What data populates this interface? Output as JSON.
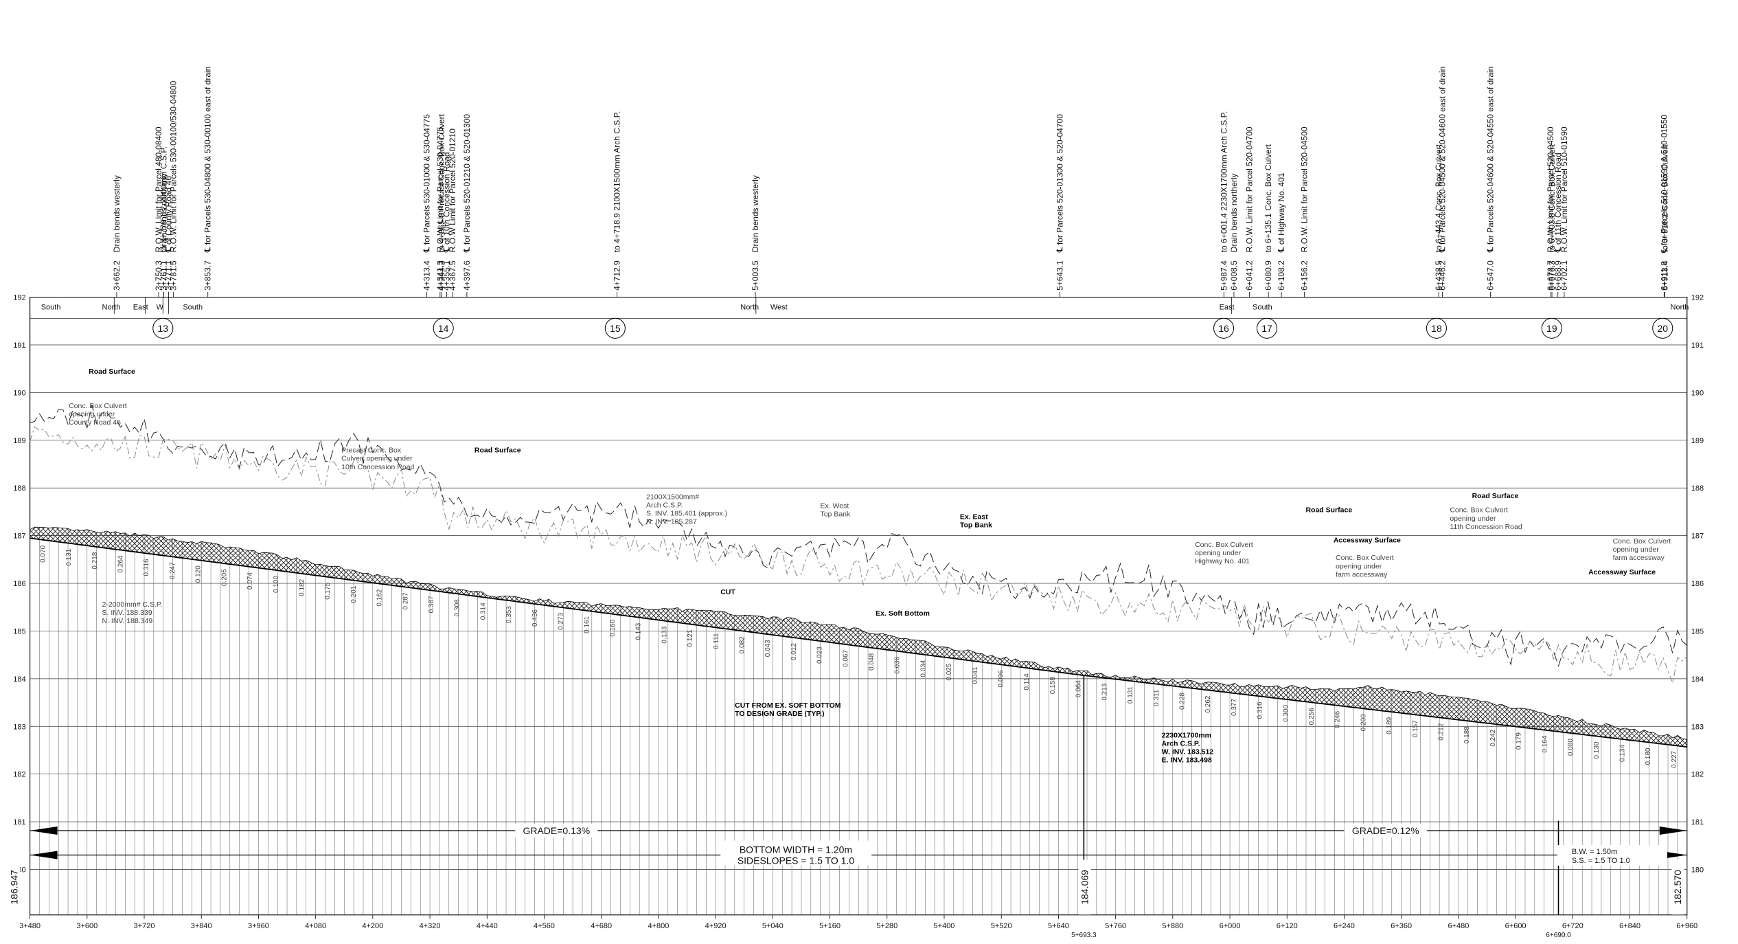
{
  "annotations": [
    {
      "station": "3+662.2",
      "text": "Drain bends westerly"
    },
    {
      "station": "3+750.3",
      "text": "R.O.W. Limit for Parcel 480-08400"
    },
    {
      "station": "3+761.1",
      "text": "Drain bends northerly"
    },
    {
      "station": "3+761.1",
      "text": "to 3+779.1 2-2000mm C.S.P."
    },
    {
      "station": "3+771.1",
      "text": "℄ of County Road 46"
    },
    {
      "station": "3+781.5",
      "text": "R.O.W. Limit for Parcels 530-00100/530-04800"
    },
    {
      "station": "3+853.7",
      "text": "℄ for Parcels 530-04800 & 530-00100 east of drain"
    },
    {
      "station": "4+313.4",
      "text": "℄ for Parcels 530-01000 & 530-04775"
    },
    {
      "station": "4+341.3",
      "text": "R.O.W. Limit for Parcel 530-04775"
    },
    {
      "station": "4+344.3",
      "text": "to 4+365.8 Precast Conc. Box Culvert"
    },
    {
      "station": "4+355.1",
      "text": "℄ of 10th Concession Road"
    },
    {
      "station": "4+367.5",
      "text": "R.O.W Limit for Parcel 520-01210"
    },
    {
      "station": "4+397.6",
      "text": "℄ for Parcels 520-01210 & 520-01300"
    },
    {
      "station": "4+712.9",
      "text": "to 4+718.9 2100X1500mm Arch C.S.P."
    },
    {
      "station": "5+003.5",
      "text": "Drain bends westerly"
    },
    {
      "station": "5+643.1",
      "text": "℄ for Parcels 520-01300 & 520-04700"
    },
    {
      "station": "5+987.4",
      "text": "to 6+001.4 2230X1700mm Arch C.S.P."
    },
    {
      "station": "6+008.5",
      "text": "Drain bends northerly"
    },
    {
      "station": "6+041.2",
      "text": "R.O.W. Limit for Parcel 520-04700"
    },
    {
      "station": "6+080.9",
      "text": "to 6+135.1 Conc. Box Culvert"
    },
    {
      "station": "6+108.2",
      "text": "℄ of Highway No. 401"
    },
    {
      "station": "6+156.2",
      "text": "R.O.W. Limit for Parcel 520-04500"
    },
    {
      "station": "6+438.5",
      "text": "to 6+443.4 Conc. Box Culvert"
    },
    {
      "station": "6+446.2",
      "text": "℄ for Parcels 520-04500 & 520-04600 east of drain"
    },
    {
      "station": "6+547.0",
      "text": "℄ for Parcels 520-04600 & 520-04550 east of drain"
    },
    {
      "station": "6+673.7",
      "text": "R.O.W. Limit for Parcel 520-04500"
    },
    {
      "station": "6+676.3",
      "text": "to 6+703.8 Conc. Box Culvert"
    },
    {
      "station": "6+688.9",
      "text": "℄ of 11th Concession Road"
    },
    {
      "station": "6+702.1",
      "text": "R.O.W. Limit for Parcel 510-01590"
    },
    {
      "station": "6+911.8",
      "text": "℄ for Parcels 510-01590 & 510-01550"
    },
    {
      "station": "6+913.4",
      "text": "to 6+918.2 Conc. Box Culvert"
    }
  ],
  "directions": [
    "South",
    "North",
    "East",
    "W",
    "South",
    "North",
    "West",
    "East",
    "South",
    "North"
  ],
  "sections": [
    "13",
    "14",
    "15",
    "16",
    "17",
    "18",
    "19",
    "20"
  ],
  "elevations": [
    180,
    181,
    182,
    183,
    184,
    185,
    186,
    187,
    188,
    189,
    190,
    191,
    192
  ],
  "stations": [
    "3+480",
    "3+600",
    "3+720",
    "3+840",
    "3+960",
    "4+080",
    "4+200",
    "4+320",
    "4+440",
    "4+560",
    "4+680",
    "4+800",
    "4+920",
    "5+040",
    "5+160",
    "5+280",
    "5+400",
    "5+520",
    "5+640",
    "5+760",
    "5+880",
    "6+000",
    "6+120",
    "6+240",
    "6+360",
    "6+480",
    "6+600",
    "6+720",
    "6+840",
    "6+960"
  ],
  "callouts": [
    [
      "Road Surface"
    ],
    [
      "Conc. Box Culvert",
      "opening under",
      "County Road 46"
    ],
    [
      "Precast Conc. Box",
      "Culvert opening under",
      "10th Concession Road"
    ],
    [
      "Road Surface"
    ],
    [
      "2100X1500mm#",
      "Arch C.S.P.",
      "S. INV. 185.401 (approx.)",
      "N. INV. 185.287"
    ],
    [
      "Ex. West",
      "Top Bank"
    ],
    [
      "Ex. East",
      "Top Bank"
    ],
    [
      "Road Surface"
    ],
    [
      "CUT"
    ],
    [
      "Ex. Soft Bottom"
    ],
    [
      "CUT FROM EX. SOFT BOTTOM",
      "TO DESIGN GRADE (TYP.)"
    ],
    [
      "2230X1700mm",
      "Arch C.S.P.",
      "W. INV. 183.512",
      "E. INV. 183.498"
    ],
    [
      "Conc. Box Culvert",
      "opening under",
      "Highway No. 401"
    ],
    [
      "Accessway Surface"
    ],
    [
      "Conc. Box Culvert",
      "opening under",
      "farm accessway"
    ],
    [
      "Road Surface"
    ],
    [
      "Conc. Box Culvert",
      "opening under",
      "11th Concession Road"
    ],
    [
      "Conc. Box Culvert",
      "opening under",
      "farm accessway"
    ],
    [
      "Accessway Surface"
    ],
    [
      "2-2000mm# C.S.P.",
      "S. INV. 188.339",
      "N. INV. 188.349"
    ]
  ],
  "grade": {
    "left": "GRADE=0.13%",
    "right": "GRADE=0.12%"
  },
  "section_notes": {
    "left": [
      "BOTTOM WIDTH = 1.20m",
      "SIDESLOPES = 1.5 TO 1.0"
    ],
    "right": [
      "B.W. = 1.50m",
      "S.S. = 1.5 TO 1.0"
    ]
  },
  "end_elevations": {
    "start": "186.947",
    "break": "184.069",
    "end": "182.570"
  },
  "break_stations": [
    "5+693.3",
    "6+690.0"
  ],
  "cut_depths": [
    "0.070",
    "0.131",
    "0.218",
    "0.264",
    "0.316",
    "0.247",
    "0.120",
    "0.205",
    "0.074",
    "0.100",
    "0.182",
    "0.175",
    "0.201",
    "0.162",
    "0.287",
    "0.387",
    "0.308",
    "0.314",
    "0.353",
    "0.436",
    "0.273",
    "0.161",
    "0.160",
    "0.143",
    "0.133",
    "0.121",
    "0.111",
    "0.082",
    "0.043",
    "0.012",
    "0.023",
    "0.067",
    "0.048",
    "0.036",
    "0.034",
    "0.025",
    "0.041",
    "0.096",
    "0.114",
    "0.158",
    "0.064",
    "0.213",
    "0.131",
    "0.311",
    "0.228",
    "0.262",
    "0.377",
    "0.316",
    "0.300",
    "0.256",
    "0.246",
    "0.200",
    "0.189",
    "0.157",
    "0.212",
    "0.188",
    "0.242",
    "0.179",
    "0.164",
    "0.080",
    "0.130",
    "0.134",
    "0.180",
    "0.227"
  ]
}
